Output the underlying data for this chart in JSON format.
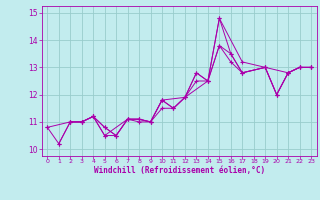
{
  "title": "",
  "xlabel": "Windchill (Refroidissement éolien,°C)",
  "bg_color": "#c2ecee",
  "line_color": "#aa00aa",
  "grid_color": "#99cccc",
  "xlim": [
    -0.5,
    23.5
  ],
  "ylim": [
    9.75,
    15.25
  ],
  "xticks": [
    0,
    1,
    2,
    3,
    4,
    5,
    6,
    7,
    8,
    9,
    10,
    11,
    12,
    13,
    14,
    15,
    16,
    17,
    18,
    19,
    20,
    21,
    22,
    23
  ],
  "yticks": [
    10,
    11,
    12,
    13,
    14,
    15
  ],
  "line1_x": [
    0,
    1,
    2,
    3,
    4,
    5,
    6,
    7,
    8,
    9,
    10,
    11,
    12,
    13,
    14,
    15,
    16,
    17,
    19,
    20,
    21,
    22,
    23
  ],
  "line1_y": [
    10.8,
    10.2,
    11.0,
    11.0,
    11.2,
    10.5,
    10.5,
    11.1,
    11.1,
    11.0,
    11.8,
    11.5,
    11.9,
    12.8,
    12.5,
    14.8,
    13.5,
    12.8,
    13.0,
    12.0,
    12.8,
    13.0,
    13.0
  ],
  "line2_x": [
    0,
    2,
    3,
    4,
    5,
    7,
    8,
    9,
    10,
    11,
    12,
    13,
    14,
    15,
    17,
    19,
    20,
    21,
    22,
    23
  ],
  "line2_y": [
    10.8,
    11.0,
    11.0,
    11.2,
    10.5,
    11.1,
    11.0,
    11.0,
    11.5,
    11.5,
    11.9,
    12.5,
    12.5,
    14.8,
    13.2,
    13.0,
    12.0,
    12.8,
    13.0,
    13.0
  ],
  "line3_x": [
    2,
    3,
    4,
    5,
    6,
    7,
    8,
    9,
    10,
    11,
    12,
    13,
    14,
    15,
    16,
    17,
    19,
    20,
    21,
    22,
    23
  ],
  "line3_y": [
    11.0,
    11.0,
    11.2,
    10.8,
    10.5,
    11.1,
    11.1,
    11.0,
    11.8,
    11.5,
    11.9,
    12.8,
    12.5,
    13.8,
    13.2,
    12.8,
    13.0,
    12.0,
    12.8,
    13.0,
    13.0
  ],
  "line4_x": [
    1,
    2,
    3,
    4,
    5,
    6,
    7,
    8,
    9,
    10,
    12,
    14,
    15,
    16,
    17,
    19,
    21,
    22,
    23
  ],
  "line4_y": [
    10.2,
    11.0,
    11.0,
    11.2,
    10.8,
    10.5,
    11.1,
    11.1,
    11.0,
    11.8,
    11.9,
    12.5,
    13.8,
    13.5,
    12.8,
    13.0,
    12.8,
    13.0,
    13.0
  ]
}
